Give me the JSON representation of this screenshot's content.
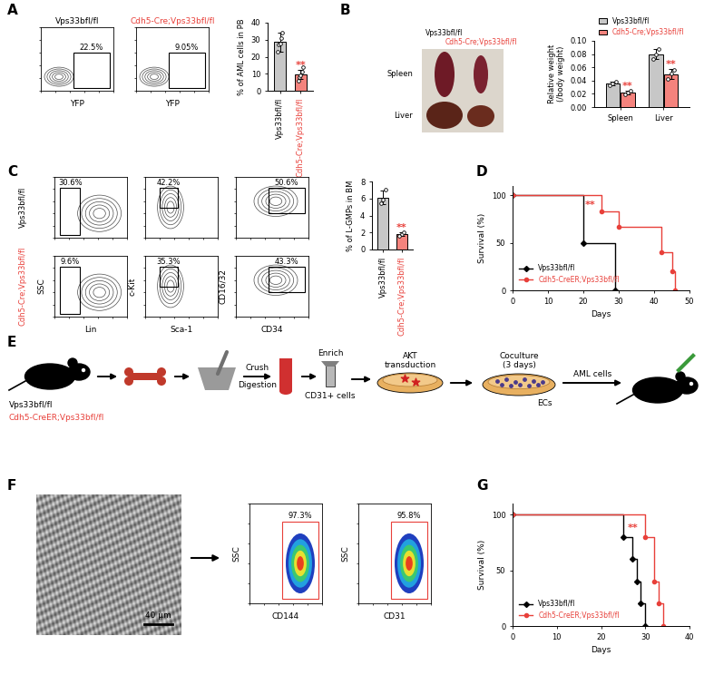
{
  "panel_labels": [
    "A",
    "B",
    "C",
    "D",
    "E",
    "F",
    "G"
  ],
  "chart_data": [
    {
      "type": "bar",
      "y_label": "% of AML cells in PB",
      "categories": [
        "Vps33bfl/fl",
        "Cdh5-Cre;Vps33bfl/fl"
      ],
      "values": [
        28.6,
        9.6
      ],
      "errors": [
        5.5,
        2.8
      ],
      "points": [
        [
          23,
          27,
          28,
          31,
          34
        ],
        [
          6,
          8,
          9,
          11,
          14
        ]
      ],
      "colors": [
        "#c7c7c7",
        "#f4837d"
      ],
      "ylim": [
        0,
        40
      ],
      "yticks": [
        0,
        10,
        20,
        30,
        40
      ],
      "annotations": [
        {
          "text": "**",
          "category": "Cdh5-Cre;Vps33bfl/fl"
        }
      ]
    },
    {
      "type": "bar",
      "y_label": "Relative weight\n(/body weight)",
      "categories": [
        "Spleen",
        "Liver"
      ],
      "series": [
        {
          "name": "Vps33bfl/fl",
          "color": "#c7c7c7",
          "values": [
            0.036,
            0.08
          ],
          "errors": [
            0.003,
            0.008
          ],
          "points": [
            [
              0.033,
              0.036,
              0.039
            ],
            [
              0.072,
              0.08,
              0.088
            ]
          ]
        },
        {
          "name": "Cdh5-Cre;Vps33bfl/fl",
          "color": "#f4837d",
          "values": [
            0.022,
            0.05
          ],
          "errors": [
            0.003,
            0.007
          ],
          "points": [
            [
              0.019,
              0.022,
              0.025
            ],
            [
              0.043,
              0.051,
              0.056
            ]
          ]
        }
      ],
      "ylim": [
        0,
        0.1
      ],
      "yticks": [
        {
          "value": 0,
          "label": "0.00"
        },
        {
          "value": 0.02,
          "label": "0.02"
        },
        {
          "value": 0.04,
          "label": "0.04"
        },
        {
          "value": 0.06,
          "label": "0.06"
        },
        {
          "value": 0.08,
          "label": "0.08"
        },
        {
          "value": 0.1,
          "label": "0.10"
        }
      ],
      "legend": "upper left",
      "annotations": [
        {
          "text": "**",
          "category": "Spleen",
          "series": "Cdh5-Cre;Vps33bfl/fl"
        },
        {
          "text": "**",
          "category": "Liver",
          "series": "Cdh5-Cre;Vps33bfl/fl"
        }
      ]
    },
    {
      "type": "bar",
      "y_label": "% of L-GMPs in BM",
      "categories": [
        "Vps33bfl/fl",
        "Cdh5-Cre;Vps33bfl/fl"
      ],
      "values": [
        6.1,
        1.8
      ],
      "errors": [
        0.8,
        0.2
      ],
      "points": [
        [
          5.4,
          5.9,
          7.0
        ],
        [
          1.6,
          1.8,
          2.0
        ]
      ],
      "colors": [
        "#c7c7c7",
        "#f4837d"
      ],
      "ylim": [
        0,
        8
      ],
      "yticks": [
        0,
        2,
        4,
        6,
        8
      ],
      "annotations": [
        {
          "text": "**",
          "category": "Cdh5-Cre;Vps33bfl/fl"
        }
      ]
    },
    {
      "type": "step",
      "x_label": "Days",
      "y_label": "Survival (%)",
      "series": [
        {
          "name": "Vps33bfl/fl",
          "color": "#000000",
          "marker": "diamond",
          "x": [
            0,
            20,
            29
          ],
          "values": [
            100,
            50,
            0
          ]
        },
        {
          "name": "Cdh5-CreER;Vps33bfl/fl",
          "color": "#e8403a",
          "marker": "circle",
          "x": [
            0,
            25,
            30,
            42,
            45,
            46
          ],
          "values": [
            100,
            83,
            67,
            40,
            20,
            0
          ]
        }
      ],
      "xlim": [
        0,
        50
      ],
      "xticks": [
        0,
        10,
        20,
        30,
        40,
        50
      ],
      "ylim": [
        0,
        110
      ],
      "yticks": [
        0,
        50,
        100
      ],
      "legend": "lower left",
      "annotations": [
        "**"
      ]
    },
    {
      "type": "step",
      "x_label": "Days",
      "y_label": "Survival (%)",
      "series": [
        {
          "name": "Vps33bfl/fl",
          "color": "#000000",
          "marker": "diamond",
          "x": [
            0,
            25,
            27,
            28,
            29,
            30
          ],
          "values": [
            100,
            80,
            60,
            40,
            20,
            0
          ]
        },
        {
          "name": "Cdh5-CreER;Vps33bfl/fl",
          "color": "#e8403a",
          "marker": "circle",
          "x": [
            0,
            30,
            32,
            33,
            34
          ],
          "values": [
            100,
            80,
            40,
            20,
            0
          ]
        }
      ],
      "xlim": [
        0,
        40
      ],
      "xticks": [
        0,
        10,
        20,
        30,
        40
      ],
      "ylim": [
        0,
        110
      ],
      "yticks": [
        0,
        50,
        100
      ],
      "legend": "lower left",
      "annotations": [
        "**"
      ]
    }
  ],
  "flow_A": [
    {
      "title": "Vps33bfl/fl",
      "xlabel": "YFP",
      "gate_label": "22.5%"
    },
    {
      "title": "Cdh5-Cre;Vps33bfl/fl",
      "xlabel": "YFP",
      "gate_label": "9.05%"
    }
  ],
  "photos_B": {
    "column_labels": [
      "Vps33bfl/fl",
      "Cdh5-Cre;Vps33bfl/fl"
    ],
    "row_labels": [
      "Spleen",
      "Liver"
    ]
  },
  "flow_C": {
    "row_labels": [
      "Vps33bfl/fl",
      "Cdh5-Cre;Vps33bfl/fl"
    ],
    "gate_labels": [
      [
        "30.6%",
        "42.2%",
        "50.6%"
      ],
      [
        "9.6%",
        "35.3%",
        "43.3%"
      ]
    ],
    "xlabels": [
      "Lin",
      "Sca-1",
      "CD34"
    ],
    "ylabels": [
      "SSC",
      "c-Kit",
      "CD16/32"
    ]
  },
  "schematic_E": {
    "mouse_labels": [
      "Vps33bfl/fl",
      "Cdh5-CreER;Vps33bfl/fl"
    ],
    "crush": "Crush",
    "digestion": "Digestion",
    "enrich": "Enrich",
    "cells": "CD31+ cells",
    "transduction": [
      "AKT",
      "transduction"
    ],
    "coculture": [
      "Coculture",
      "(3 days)"
    ],
    "ecs": "ECs",
    "aml": "AML cells"
  },
  "image_F": {
    "scale_bar": "40 μm"
  },
  "flow_F": [
    {
      "xlabel": "CD144",
      "ylabel": "SSC",
      "gate_label": "97.3%"
    },
    {
      "xlabel": "CD31",
      "ylabel": "SSC",
      "gate_label": "95.8%"
    }
  ]
}
